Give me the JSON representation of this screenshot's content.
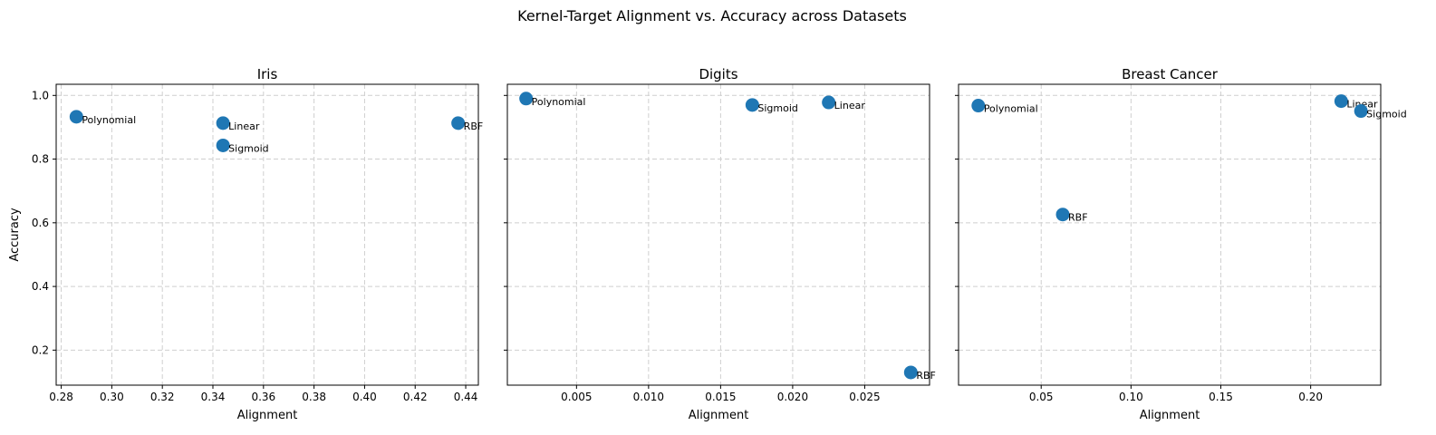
{
  "figure": {
    "suptitle": "Kernel-Target Alignment vs. Accuracy across Datasets"
  },
  "chart_data": [
    {
      "type": "scatter",
      "title": "Iris",
      "xlabel": "Alignment",
      "ylabel": "Accuracy",
      "xlim": [
        0.278,
        0.445
      ],
      "ylim": [
        0.09,
        1.035
      ],
      "xticks": [
        0.28,
        0.3,
        0.32,
        0.34,
        0.36,
        0.38,
        0.4,
        0.42,
        0.44
      ],
      "xtick_labels": [
        "0.28",
        "0.30",
        "0.32",
        "0.34",
        "0.36",
        "0.38",
        "0.40",
        "0.42",
        "0.44"
      ],
      "yticks": [
        0.2,
        0.4,
        0.6,
        0.8,
        1.0
      ],
      "ytick_labels": [
        "0.2",
        "0.4",
        "0.6",
        "0.8",
        "1.0"
      ],
      "show_ytick_labels": true,
      "grid": true,
      "color": "#1f77b4",
      "points": [
        {
          "label": "Polynomial",
          "x": 0.286,
          "y": 0.933
        },
        {
          "label": "Linear",
          "x": 0.344,
          "y": 0.913
        },
        {
          "label": "Sigmoid",
          "x": 0.344,
          "y": 0.843
        },
        {
          "label": "RBF",
          "x": 0.437,
          "y": 0.913
        }
      ]
    },
    {
      "type": "scatter",
      "title": "Digits",
      "xlabel": "Alignment",
      "ylabel": "",
      "xlim": [
        0.0002,
        0.0295
      ],
      "ylim": [
        0.09,
        1.035
      ],
      "xticks": [
        0.005,
        0.01,
        0.015,
        0.02,
        0.025
      ],
      "xtick_labels": [
        "0.005",
        "0.010",
        "0.015",
        "0.020",
        "0.025"
      ],
      "yticks": [
        0.2,
        0.4,
        0.6,
        0.8,
        1.0
      ],
      "ytick_labels": [
        "0.2",
        "0.4",
        "0.6",
        "0.8",
        "1.0"
      ],
      "show_ytick_labels": false,
      "grid": true,
      "color": "#1f77b4",
      "points": [
        {
          "label": "Polynomial",
          "x": 0.0015,
          "y": 0.99
        },
        {
          "label": "Sigmoid",
          "x": 0.0172,
          "y": 0.97
        },
        {
          "label": "Linear",
          "x": 0.0225,
          "y": 0.978
        },
        {
          "label": "RBF",
          "x": 0.0282,
          "y": 0.13
        }
      ]
    },
    {
      "type": "scatter",
      "title": "Breast Cancer",
      "xlabel": "Alignment",
      "ylabel": "",
      "xlim": [
        0.004,
        0.239
      ],
      "ylim": [
        0.09,
        1.035
      ],
      "xticks": [
        0.05,
        0.1,
        0.15,
        0.2
      ],
      "xtick_labels": [
        "0.05",
        "0.10",
        "0.15",
        "0.20"
      ],
      "yticks": [
        0.2,
        0.4,
        0.6,
        0.8,
        1.0
      ],
      "ytick_labels": [
        "0.2",
        "0.4",
        "0.6",
        "0.8",
        "1.0"
      ],
      "show_ytick_labels": false,
      "grid": true,
      "color": "#1f77b4",
      "points": [
        {
          "label": "Polynomial",
          "x": 0.015,
          "y": 0.968
        },
        {
          "label": "RBF",
          "x": 0.062,
          "y": 0.626
        },
        {
          "label": "Linear",
          "x": 0.217,
          "y": 0.982
        },
        {
          "label": "Sigmoid",
          "x": 0.228,
          "y": 0.951
        }
      ]
    }
  ]
}
